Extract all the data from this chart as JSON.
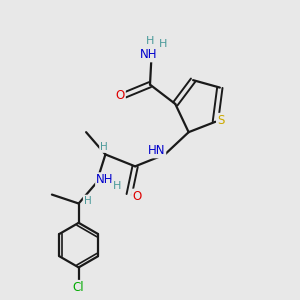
{
  "background_color": "#e8e8e8",
  "bond_color": "#1a1a1a",
  "atom_colors": {
    "N": "#0000cc",
    "O": "#dd0000",
    "S": "#ccaa00",
    "Cl": "#00aa00",
    "C": "#1a1a1a",
    "H": "#4a9a9a"
  },
  "figsize": [
    3.0,
    3.0
  ],
  "dpi": 100,
  "xlim": [
    0,
    10
  ],
  "ylim": [
    0,
    10
  ]
}
